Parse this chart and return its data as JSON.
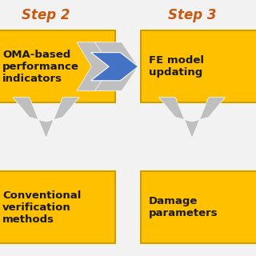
{
  "background_color": "#f2f2f2",
  "step2_label": "Step 2",
  "step3_label": "Step 3",
  "step_color": "#c55a11",
  "box_color": "#ffc000",
  "box_edge_color": "#c9a000",
  "box1_text": "OMA-based\nperformance\nindicators",
  "box2_text": "FE model\nupdating",
  "box3_text": "Conventional\nverification\nmethods",
  "box4_text": "Damage\nparameters",
  "arrow_color_gray": "#bfbfbf",
  "arrow_color_blue": "#4472c4",
  "text_color": "#1a1a1a",
  "font_size": 9.5,
  "step_font_size": 12
}
